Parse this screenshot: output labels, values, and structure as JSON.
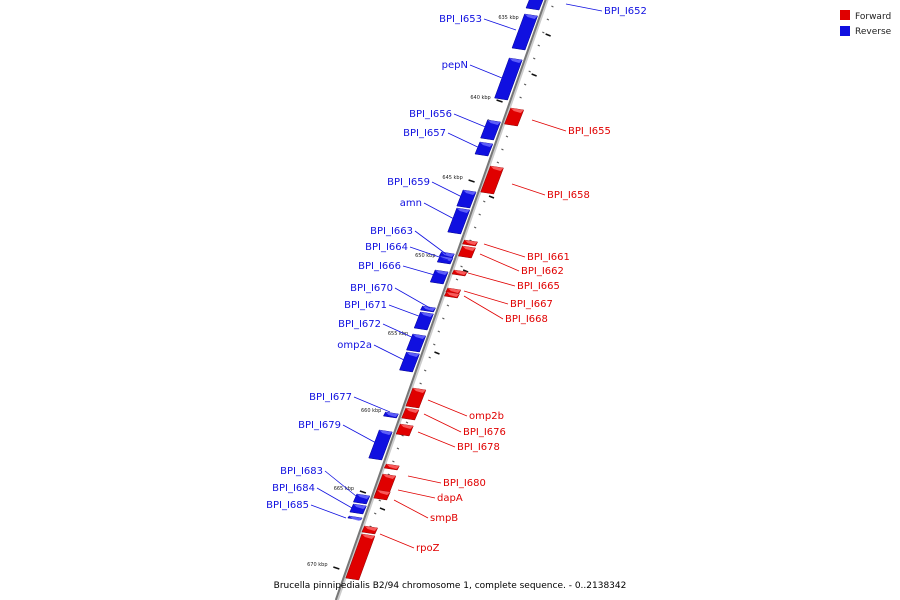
{
  "caption": "Brucella pinnipedialis B2/94 chromosome 1, complete sequence. - 0..2138342",
  "legend": [
    {
      "label": "Forward",
      "color": "#e00000"
    },
    {
      "label": "Reverse",
      "color": "#1010e0"
    }
  ],
  "colors": {
    "forward": "#e00000",
    "reverse": "#1010e0",
    "backbone": "#888888"
  },
  "ticks": [
    "635 kbp",
    "640 kbp",
    "645 kbp",
    "650 kbp",
    "655 kbp",
    "660 kbp",
    "665 kbp",
    "670 kbp"
  ],
  "genes": [
    {
      "name": "BPI_I652",
      "strand": "reverse"
    },
    {
      "name": "BPI_I653",
      "strand": "reverse"
    },
    {
      "name": "pepN",
      "strand": "reverse"
    },
    {
      "name": "BPI_I655",
      "strand": "forward"
    },
    {
      "name": "BPI_I656",
      "strand": "reverse"
    },
    {
      "name": "BPI_I657",
      "strand": "reverse"
    },
    {
      "name": "BPI_I658",
      "strand": "forward"
    },
    {
      "name": "BPI_I659",
      "strand": "reverse"
    },
    {
      "name": "amn",
      "strand": "reverse"
    },
    {
      "name": "BPI_I661",
      "strand": "forward"
    },
    {
      "name": "BPI_I662",
      "strand": "forward"
    },
    {
      "name": "BPI_I663",
      "strand": "reverse"
    },
    {
      "name": "BPI_I664",
      "strand": "reverse"
    },
    {
      "name": "BPI_I665",
      "strand": "forward"
    },
    {
      "name": "BPI_I666",
      "strand": "reverse"
    },
    {
      "name": "BPI_I667",
      "strand": "forward"
    },
    {
      "name": "BPI_I668",
      "strand": "forward"
    },
    {
      "name": "BPI_I670",
      "strand": "reverse"
    },
    {
      "name": "BPI_I671",
      "strand": "reverse"
    },
    {
      "name": "BPI_I672",
      "strand": "reverse"
    },
    {
      "name": "omp2a",
      "strand": "reverse"
    },
    {
      "name": "BPI_I677",
      "strand": "reverse"
    },
    {
      "name": "omp2b",
      "strand": "forward"
    },
    {
      "name": "BPI_I676",
      "strand": "forward"
    },
    {
      "name": "BPI_I679",
      "strand": "reverse"
    },
    {
      "name": "BPI_I678",
      "strand": "forward"
    },
    {
      "name": "BPI_I680",
      "strand": "forward"
    },
    {
      "name": "BPI_I683",
      "strand": "reverse"
    },
    {
      "name": "dapA",
      "strand": "forward"
    },
    {
      "name": "BPI_I684",
      "strand": "reverse"
    },
    {
      "name": "BPI_I685",
      "strand": "reverse"
    },
    {
      "name": "smpB",
      "strand": "forward"
    },
    {
      "name": "rpoZ",
      "strand": "forward"
    }
  ]
}
